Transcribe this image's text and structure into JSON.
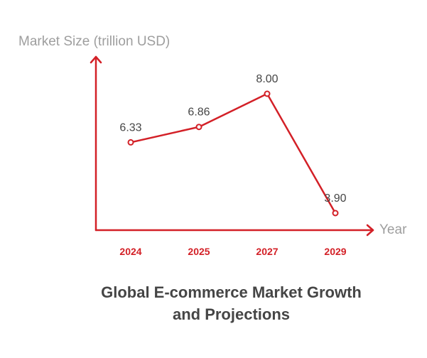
{
  "colors": {
    "series": "#d32027",
    "axis": "#d32027",
    "axis_title": "#9e9e9e",
    "data_label": "#454545",
    "title": "#454545",
    "background": "#ffffff"
  },
  "chart_data": {
    "type": "line",
    "title": {
      "line1": "Global E-commerce Market Growth",
      "line2": "and Projections"
    },
    "xlabel": "Year",
    "ylabel": "Market Size (trillion USD)",
    "categories": [
      "2024",
      "2025",
      "2027",
      "2029"
    ],
    "series": [
      {
        "values": [
          6.33,
          6.86,
          8.0,
          3.9
        ],
        "labels": [
          "6.33",
          "6.86",
          "8.00",
          "3.90"
        ]
      }
    ],
    "ylim": [
      3.0,
      8.7
    ],
    "grid": false,
    "legend": "none",
    "point_marker": "hollow-circle",
    "axis_arrows": true
  }
}
